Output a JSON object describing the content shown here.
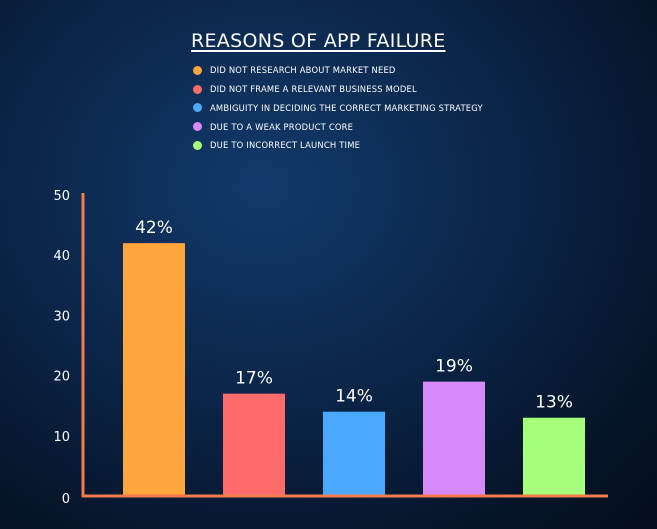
{
  "chart_data": {
    "type": "bar",
    "title": "REASONS OF APP FAILURE",
    "xlabel": "",
    "ylabel": "",
    "ylim": [
      0,
      50
    ],
    "yticks": [
      0,
      10,
      20,
      30,
      40,
      50
    ],
    "grid": false,
    "legend_position": "top",
    "axis_color": "#f47c4a",
    "categories": [
      "DID NOT RESEARCH ABOUT MARKET NEED",
      "DID NOT FRAME A RELEVANT BUSINESS MODEL",
      "AMBIGUITY IN DECIDING THE CORRECT MARKETING STRATEGY",
      "DUE TO A WEAK PRODUCT CORE",
      "DUE TO INCORRECT LAUNCH TIME"
    ],
    "values": [
      42,
      17,
      14,
      19,
      13
    ],
    "data_labels": [
      "42%",
      "17%",
      "14%",
      "19%",
      "13%"
    ],
    "colors": [
      "#ffa63c",
      "#ff6b6b",
      "#4aa8ff",
      "#d68af7",
      "#a6ff7a"
    ]
  }
}
